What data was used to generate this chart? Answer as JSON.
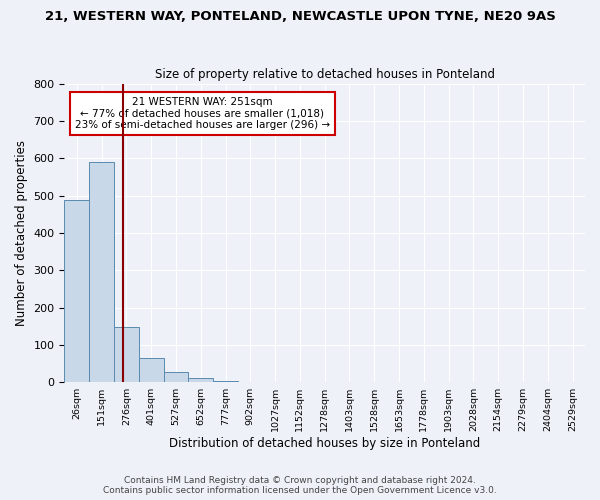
{
  "title": "21, WESTERN WAY, PONTELAND, NEWCASTLE UPON TYNE, NE20 9AS",
  "subtitle": "Size of property relative to detached houses in Ponteland",
  "xlabel": "Distribution of detached houses by size in Ponteland",
  "ylabel": "Number of detached properties",
  "footer_line1": "Contains HM Land Registry data © Crown copyright and database right 2024.",
  "footer_line2": "Contains public sector information licensed under the Open Government Licence v3.0.",
  "bin_labels": [
    "26sqm",
    "151sqm",
    "276sqm",
    "401sqm",
    "527sqm",
    "652sqm",
    "777sqm",
    "902sqm",
    "1027sqm",
    "1152sqm",
    "1278sqm",
    "1403sqm",
    "1528sqm",
    "1653sqm",
    "1778sqm",
    "1903sqm",
    "2028sqm",
    "2154sqm",
    "2279sqm",
    "2404sqm",
    "2529sqm"
  ],
  "bar_values": [
    487,
    591,
    149,
    65,
    28,
    10,
    3,
    0,
    0,
    0,
    0,
    0,
    0,
    0,
    0,
    0,
    0,
    0,
    0,
    0,
    0
  ],
  "bar_color": "#c8d8e8",
  "bar_edge_color": "#5a8ab0",
  "bg_color": "#eef2f8",
  "grid_color": "#ffffff",
  "vline_x": 1.85,
  "vline_color": "#8b0000",
  "annotation_text": "21 WESTERN WAY: 251sqm\n← 77% of detached houses are smaller (1,018)\n23% of semi-detached houses are larger (296) →",
  "annotation_box_color": "#ffffff",
  "annotation_box_edge": "#cc0000",
  "ylim": [
    0,
    800
  ],
  "yticks": [
    0,
    100,
    200,
    300,
    400,
    500,
    600,
    700,
    800
  ]
}
